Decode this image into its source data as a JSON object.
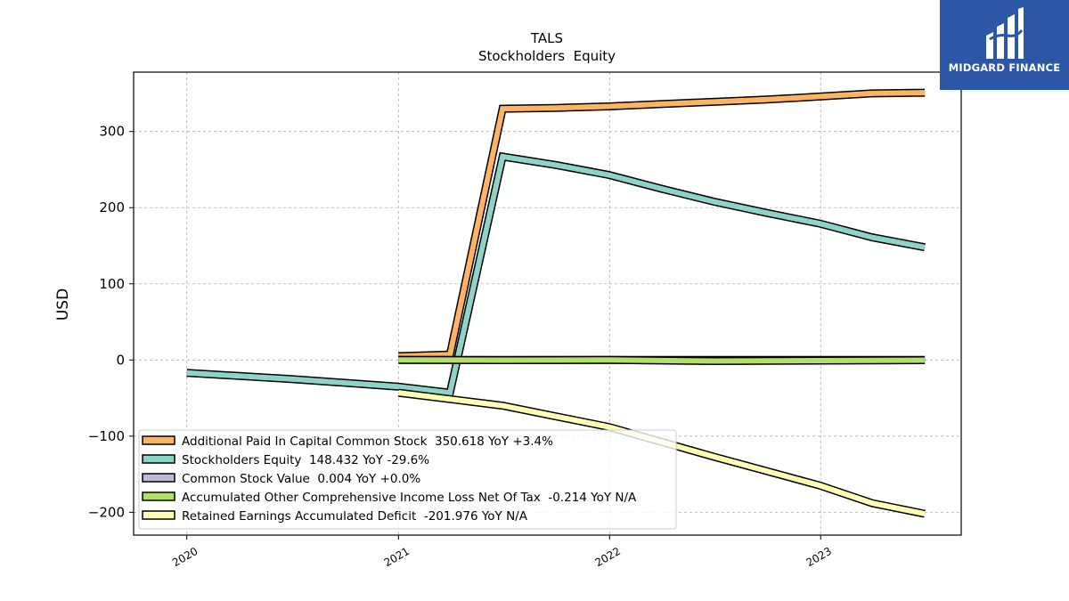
{
  "chart_data": {
    "type": "line",
    "title": "TALS",
    "subtitle": "Stockholders  Equity",
    "ylabel": "USD",
    "xlabel": "",
    "xlim": [
      "2019-10-01",
      "2023-09-01"
    ],
    "ylim": [
      -230,
      378
    ],
    "xticks": [
      {
        "date": "2020-01-01",
        "label": "2020"
      },
      {
        "date": "2021-01-01",
        "label": "2021"
      },
      {
        "date": "2022-01-01",
        "label": "2022"
      },
      {
        "date": "2023-01-01",
        "label": "2023"
      }
    ],
    "yticks": [
      {
        "value": 300,
        "label": "300"
      },
      {
        "value": 200,
        "label": "200"
      },
      {
        "value": 100,
        "label": "100"
      },
      {
        "value": 0,
        "label": "0"
      },
      {
        "value": -100,
        "label": "−100"
      },
      {
        "value": -200,
        "label": "−200"
      }
    ],
    "grid": true,
    "legend_position": "lower-left",
    "series": [
      {
        "name": "Additional Paid In Capital Common Stock",
        "legend": "Additional Paid In Capital Common Stock  350.618 YoY +3.4%",
        "color": "#fdb462",
        "x": [
          "2021-01-01",
          "2021-03-31",
          "2021-06-30",
          "2021-09-30",
          "2021-12-31",
          "2022-03-31",
          "2022-06-30",
          "2022-09-30",
          "2022-12-31",
          "2023-03-31",
          "2023-06-30"
        ],
        "y": [
          5,
          7,
          330,
          331,
          333,
          336,
          339,
          342,
          346,
          350,
          351
        ]
      },
      {
        "name": "Stockholders Equity",
        "legend": "Stockholders Equity  148.432 YoY -29.6%",
        "color": "#8dd3c7",
        "x": [
          "2020-01-01",
          "2020-06-30",
          "2020-12-31",
          "2021-03-31",
          "2021-06-30",
          "2021-09-30",
          "2021-12-31",
          "2022-03-31",
          "2022-06-30",
          "2022-09-30",
          "2022-12-31",
          "2023-03-31",
          "2023-06-30"
        ],
        "y": [
          -17,
          -25,
          -35,
          -43,
          267,
          256,
          243,
          225,
          208,
          193,
          179,
          161,
          148
        ]
      },
      {
        "name": "Common Stock Value",
        "legend": "Common Stock Value  0.004 YoY +0.0%",
        "color": "#bebada",
        "x": [
          "2021-01-01",
          "2023-06-30"
        ],
        "y": [
          0.004,
          0.004
        ]
      },
      {
        "name": "Accumulated Other Comprehensive Income Loss Net Of Tax",
        "legend": "Accumulated Other Comprehensive Income Loss Net Of Tax  -0.214 YoY N/A",
        "color": "#b3de69",
        "x": [
          "2021-01-01",
          "2021-06-30",
          "2021-12-31",
          "2022-06-30",
          "2022-12-31",
          "2023-06-30"
        ],
        "y": [
          0,
          -0.3,
          0,
          -1.4,
          -0.8,
          -0.214
        ]
      },
      {
        "name": "Retained Earnings Accumulated Deficit",
        "legend": "Retained Earnings Accumulated Deficit  -201.976 YoY N/A",
        "color": "#ffffb3",
        "x": [
          "2021-01-01",
          "2021-06-30",
          "2021-12-31",
          "2022-06-30",
          "2022-12-31",
          "2023-03-31",
          "2023-06-30"
        ],
        "y": [
          -43,
          -60,
          -88,
          -127,
          -165,
          -188,
          -202
        ]
      }
    ]
  },
  "logo": {
    "text": "MIDGARD FINANCE"
  }
}
